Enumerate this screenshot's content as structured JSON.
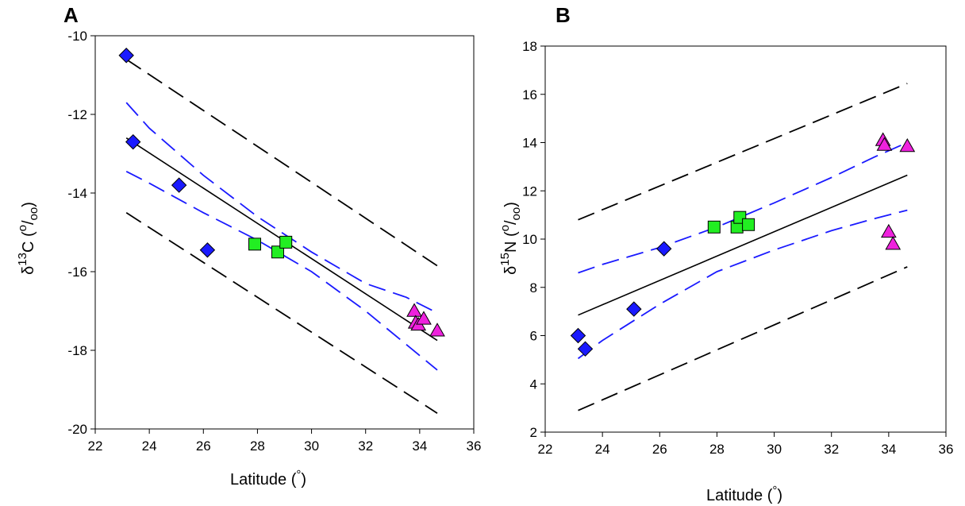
{
  "chart_data": [
    {
      "panel": "A",
      "type": "scatter",
      "xlabel": "Latitude (°)",
      "ylabel": "δ13C (0/00)",
      "xlim": [
        22,
        36
      ],
      "ylim": [
        -20,
        -10
      ],
      "xticks": [
        22,
        24,
        26,
        28,
        30,
        32,
        34,
        36
      ],
      "yticks": [
        -20,
        -18,
        -16,
        -14,
        -12,
        -10
      ],
      "grid": false,
      "series": [
        {
          "marker": "diamond",
          "color": "#1a1aff",
          "x": [
            23.15,
            23.4,
            25.1,
            26.15
          ],
          "y": [
            -10.5,
            -12.7,
            -13.8,
            -15.45
          ]
        },
        {
          "marker": "square",
          "color": "#22ee22",
          "x": [
            27.9,
            28.75,
            29.05
          ],
          "y": [
            -15.3,
            -15.5,
            -15.25
          ]
        },
        {
          "marker": "triangle",
          "color": "#ee22dd",
          "x": [
            33.8,
            33.85,
            33.95,
            34.15,
            34.65
          ],
          "y": [
            -17.0,
            -17.3,
            -17.35,
            -17.2,
            -17.5
          ]
        }
      ],
      "lines": [
        {
          "style": "solid",
          "color": "#000000",
          "x": [
            23.15,
            34.65
          ],
          "y": [
            -12.6,
            -17.75
          ]
        },
        {
          "style": "dashed",
          "color": "#1a1aff",
          "x": [
            23.15,
            24,
            26,
            28,
            30,
            32,
            33.5,
            34.65
          ],
          "y": [
            -11.7,
            -12.35,
            -13.55,
            -14.6,
            -15.5,
            -16.3,
            -16.65,
            -17.05
          ]
        },
        {
          "style": "dashed",
          "color": "#1a1aff",
          "x": [
            23.15,
            24,
            26,
            28,
            30,
            32,
            33.5,
            34.65
          ],
          "y": [
            -13.45,
            -13.75,
            -14.5,
            -15.2,
            -16.0,
            -17.0,
            -17.85,
            -18.5
          ]
        },
        {
          "style": "dashed",
          "color": "#000000",
          "x": [
            23.15,
            34.65
          ],
          "y": [
            -10.6,
            -15.85
          ]
        },
        {
          "style": "dashed",
          "color": "#000000",
          "x": [
            23.15,
            34.65
          ],
          "y": [
            -14.5,
            -19.6
          ]
        }
      ]
    },
    {
      "panel": "B",
      "type": "scatter",
      "xlabel": "Latitude (°)",
      "ylabel": "δ15N (0/00)",
      "xlim": [
        22,
        36
      ],
      "ylim": [
        2,
        18
      ],
      "xticks": [
        22,
        24,
        26,
        28,
        30,
        32,
        34,
        36
      ],
      "yticks": [
        2,
        4,
        6,
        8,
        10,
        12,
        14,
        16,
        18
      ],
      "grid": false,
      "series": [
        {
          "marker": "diamond",
          "color": "#1a1aff",
          "x": [
            23.15,
            23.4,
            25.1,
            26.15
          ],
          "y": [
            6.0,
            5.45,
            7.1,
            9.6
          ]
        },
        {
          "marker": "square",
          "color": "#22ee22",
          "x": [
            27.9,
            28.7,
            28.8,
            29.1
          ],
          "y": [
            10.5,
            10.5,
            10.9,
            10.6
          ]
        },
        {
          "marker": "triangle",
          "color": "#ee22dd",
          "x": [
            33.8,
            33.85,
            34.0,
            34.15,
            34.65
          ],
          "y": [
            14.1,
            13.9,
            10.3,
            9.8,
            13.85
          ]
        }
      ],
      "lines": [
        {
          "style": "solid",
          "color": "#000000",
          "x": [
            23.15,
            34.65
          ],
          "y": [
            6.85,
            12.65
          ]
        },
        {
          "style": "dashed",
          "color": "#1a1aff",
          "x": [
            23.15,
            24,
            26,
            28,
            30,
            32,
            33.5,
            34.65
          ],
          "y": [
            8.6,
            8.95,
            9.65,
            10.5,
            11.5,
            12.55,
            13.4,
            14.0
          ]
        },
        {
          "style": "dashed",
          "color": "#1a1aff",
          "x": [
            23.15,
            24,
            26,
            28,
            30,
            32,
            33.5,
            34.65
          ],
          "y": [
            5.05,
            5.8,
            7.3,
            8.65,
            9.55,
            10.35,
            10.85,
            11.2
          ]
        },
        {
          "style": "dashed",
          "color": "#000000",
          "x": [
            23.15,
            34.65
          ],
          "y": [
            10.8,
            16.45
          ]
        },
        {
          "style": "dashed",
          "color": "#000000",
          "x": [
            23.15,
            34.65
          ],
          "y": [
            2.9,
            8.85
          ]
        }
      ]
    }
  ]
}
